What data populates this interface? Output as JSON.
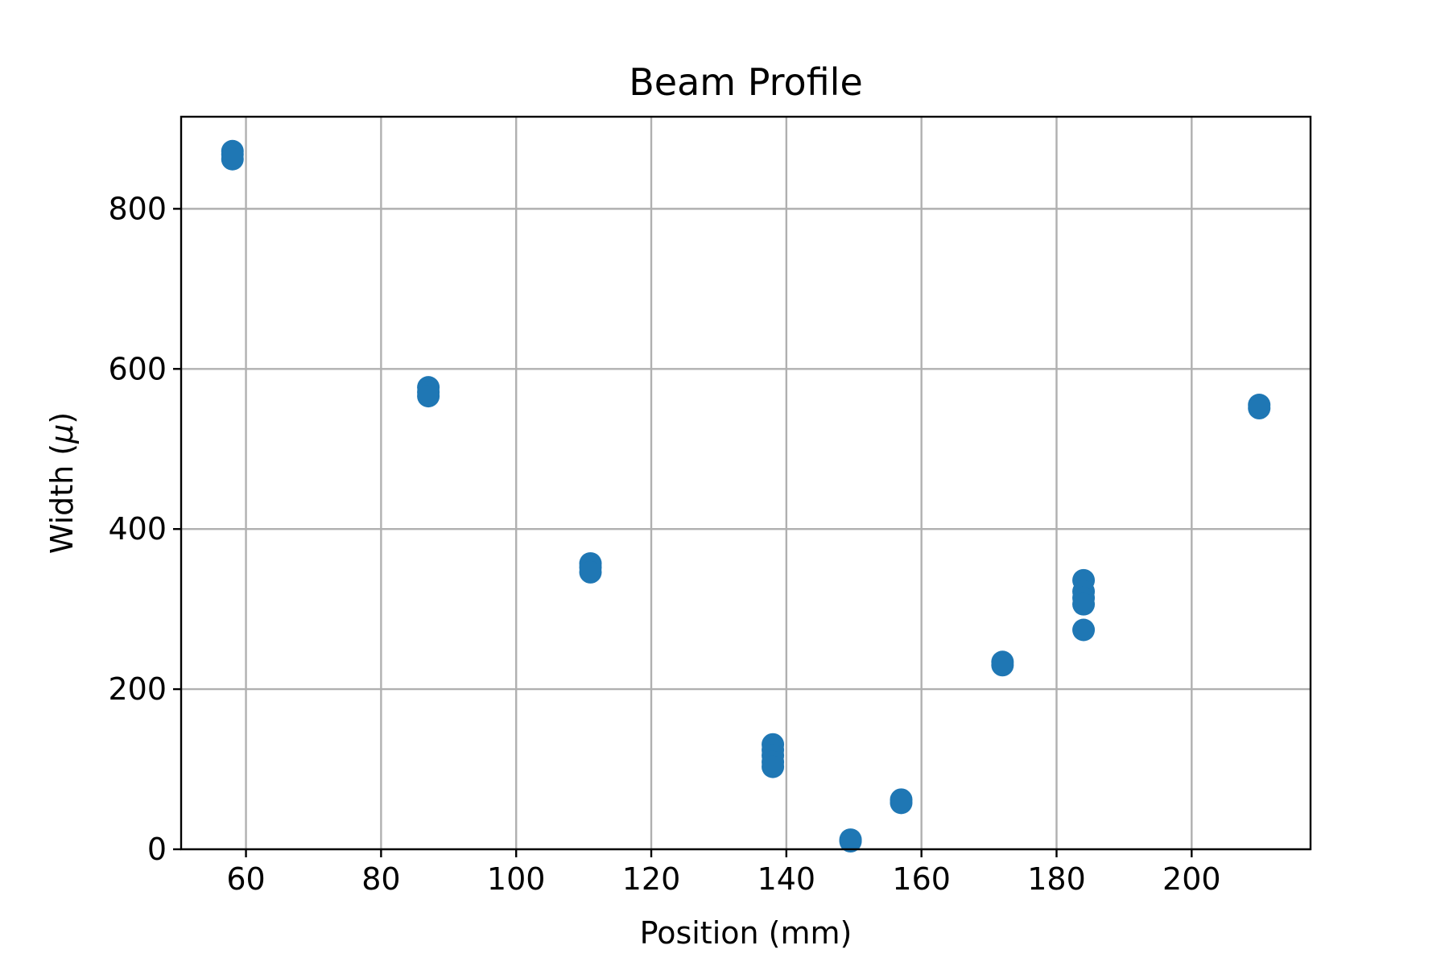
{
  "chart_data": {
    "type": "scatter",
    "title": "Beam Profile",
    "xlabel": "Position (mm)",
    "ylabel_main": "Width (",
    "ylabel_symbol": "μ",
    "ylabel_end": ")",
    "xlim": [
      50.4,
      217.6
    ],
    "ylim": [
      0,
      915
    ],
    "xticks": [
      60,
      80,
      100,
      120,
      140,
      160,
      180,
      200
    ],
    "yticks": [
      0,
      200,
      400,
      600,
      800
    ],
    "grid": true,
    "marker_color": "#1f77b4",
    "series": [
      {
        "x": [
          58,
          58,
          58,
          87,
          87,
          87,
          111,
          111,
          111,
          138,
          138,
          138,
          138,
          138,
          149.5,
          149.5,
          157,
          157,
          172,
          172,
          184,
          184,
          184,
          184,
          184,
          210,
          210
        ],
        "y": [
          872,
          868,
          862,
          577,
          571,
          566,
          357,
          352,
          346,
          131,
          124,
          117,
          109,
          103,
          12,
          10,
          62,
          58,
          234,
          230,
          336,
          322,
          314,
          306,
          274,
          555,
          551
        ]
      }
    ]
  }
}
